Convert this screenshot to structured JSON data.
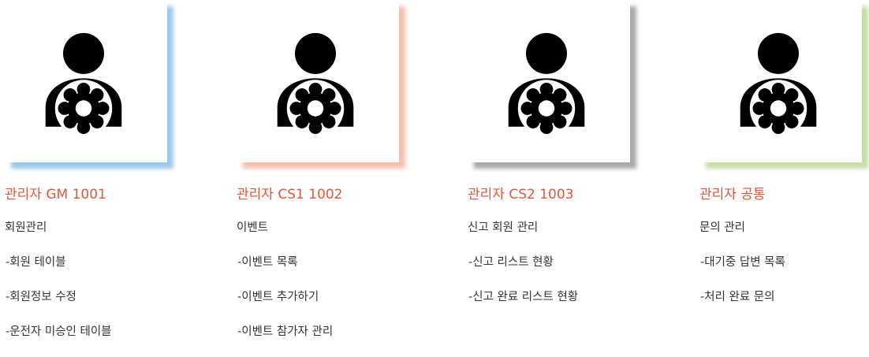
{
  "theme": {
    "title_color": "#e5553b",
    "text_color": "#333333",
    "icon_color": "#000000"
  },
  "cards": [
    {
      "title": "관리자 GM 1001",
      "accent_color": "#9cc9ea",
      "icon": "admin-gear-user-icon",
      "section": "회원관리",
      "items": [
        "-회원 테이블",
        "-회원정보 수정",
        "-운전자 미승인 테이블"
      ]
    },
    {
      "title": "관리자 CS1 1002",
      "accent_color": "#f6c1b0",
      "icon": "admin-gear-user-icon",
      "section": "이벤트",
      "items": [
        "-이벤트 목록",
        "-이벤트 추가하기",
        "-이벤트 참가자 관리"
      ]
    },
    {
      "title": "관리자 CS2 1003",
      "accent_color": "#a9a9a9",
      "icon": "admin-gear-user-icon",
      "section": "신고 회원 관리",
      "items": [
        "-신고 리스트 현황",
        "-신고 완료 리스트 현황"
      ]
    },
    {
      "title": "관리자 공통",
      "accent_color": "#c6dfa8",
      "icon": "admin-gear-user-icon",
      "section": "문의 관리",
      "items": [
        "-대기중 답변 목록",
        "-처리 완료 문의"
      ]
    }
  ]
}
